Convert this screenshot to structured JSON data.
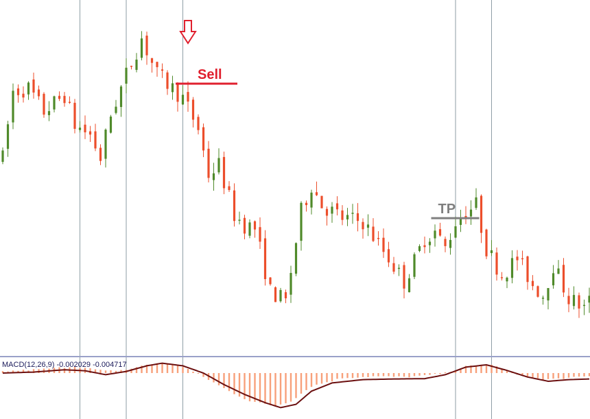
{
  "colors": {
    "bull": "#4f8a2a",
    "bear": "#ec4e2b",
    "wick": "#5a5a5a",
    "grid": "#8e9ea6",
    "separator": "#9aa0c8",
    "hist": "#f7a07a",
    "macd_line": "#6b0f0f",
    "sell": "#e0202e",
    "tp": "#7f7f7f"
  },
  "chart_data": [
    {
      "type": "candlestick",
      "title": "",
      "xlabel": "",
      "ylabel": "",
      "n_bars": 115,
      "ylim": [
        0,
        100
      ],
      "grid": {
        "vertical_at_bar": [
          15,
          24,
          35,
          88,
          95
        ],
        "horizontal": false
      },
      "price_path": [
        [
          0,
          55
        ],
        [
          2,
          75
        ],
        [
          5,
          76
        ],
        [
          8,
          69
        ],
        [
          12,
          74
        ],
        [
          14,
          65
        ],
        [
          17,
          62
        ],
        [
          19,
          55
        ],
        [
          21,
          68
        ],
        [
          24,
          80
        ],
        [
          27,
          91
        ],
        [
          30,
          80
        ],
        [
          33,
          76
        ],
        [
          35,
          73
        ],
        [
          38,
          64
        ],
        [
          40,
          50
        ],
        [
          42,
          53
        ],
        [
          45,
          38
        ],
        [
          47,
          35
        ],
        [
          49,
          34
        ],
        [
          52,
          15
        ],
        [
          55,
          12
        ],
        [
          56,
          21
        ],
        [
          58,
          39
        ],
        [
          60,
          47
        ],
        [
          62,
          41
        ],
        [
          66,
          37
        ],
        [
          70,
          36
        ],
        [
          75,
          25
        ],
        [
          78,
          18
        ],
        [
          80,
          24
        ],
        [
          82,
          31
        ],
        [
          84,
          33
        ],
        [
          86,
          28
        ],
        [
          88,
          36
        ],
        [
          90,
          39
        ],
        [
          92,
          41
        ],
        [
          94,
          28
        ],
        [
          97,
          20
        ],
        [
          100,
          25
        ],
        [
          103,
          17
        ],
        [
          105,
          14
        ],
        [
          107,
          23
        ],
        [
          110,
          13
        ],
        [
          113,
          10
        ],
        [
          114,
          12
        ]
      ],
      "annotations": [
        {
          "label": "Sell",
          "bar": 36,
          "type": "sell-arrow",
          "level": 68
        },
        {
          "label": "TP",
          "bar": 87,
          "type": "take-profit",
          "level": 37
        }
      ]
    },
    {
      "type": "bar+line",
      "name": "MACD panel",
      "label": "MACD(12,26,9) -0.002029 -0.004717",
      "ylim": [
        -1.2,
        0.6
      ],
      "histogram_path": [
        [
          0,
          0.05
        ],
        [
          8,
          0.12
        ],
        [
          14,
          0.2
        ],
        [
          20,
          0.06
        ],
        [
          24,
          0.1
        ],
        [
          28,
          0.25
        ],
        [
          31,
          0.32
        ],
        [
          35,
          0.2
        ],
        [
          40,
          -0.2
        ],
        [
          44,
          -0.55
        ],
        [
          48,
          -0.85
        ],
        [
          53,
          -1.0
        ],
        [
          56,
          -0.85
        ],
        [
          60,
          -0.4
        ],
        [
          66,
          -0.15
        ],
        [
          72,
          -0.1
        ],
        [
          78,
          -0.12
        ],
        [
          82,
          -0.08
        ],
        [
          86,
          0.0
        ],
        [
          90,
          0.2
        ],
        [
          95,
          0.25
        ],
        [
          100,
          -0.05
        ],
        [
          105,
          -0.2
        ],
        [
          110,
          -0.15
        ],
        [
          114,
          -0.1
        ]
      ],
      "macd_line_path": [
        [
          0,
          0.0
        ],
        [
          6,
          0.03
        ],
        [
          12,
          0.1
        ],
        [
          16,
          0.07
        ],
        [
          20,
          -0.05
        ],
        [
          24,
          0.05
        ],
        [
          28,
          0.22
        ],
        [
          31,
          0.3
        ],
        [
          35,
          0.22
        ],
        [
          39,
          0.0
        ],
        [
          43,
          -0.35
        ],
        [
          47,
          -0.65
        ],
        [
          51,
          -0.9
        ],
        [
          54,
          -1.05
        ],
        [
          57,
          -0.95
        ],
        [
          60,
          -0.55
        ],
        [
          64,
          -0.3
        ],
        [
          70,
          -0.2
        ],
        [
          76,
          -0.18
        ],
        [
          82,
          -0.17
        ],
        [
          86,
          -0.05
        ],
        [
          90,
          0.18
        ],
        [
          94,
          0.25
        ],
        [
          98,
          0.08
        ],
        [
          102,
          -0.12
        ],
        [
          106,
          -0.25
        ],
        [
          110,
          -0.2
        ],
        [
          114,
          -0.18
        ]
      ]
    }
  ]
}
